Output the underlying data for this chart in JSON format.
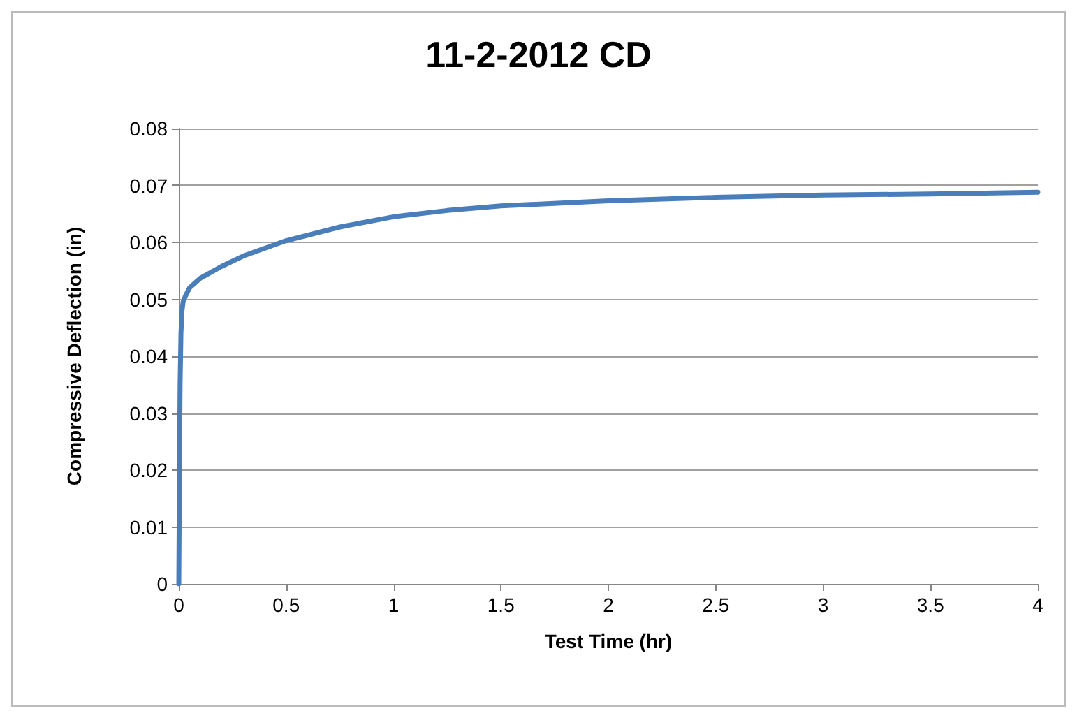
{
  "chart_data": {
    "type": "line",
    "title": "11-2-2012 CD",
    "xlabel": "Test Time (hr)",
    "ylabel": "Compressive Deflection (in)",
    "x": [
      0,
      0.003,
      0.006,
      0.01,
      0.015,
      0.02,
      0.03,
      0.05,
      0.1,
      0.2,
      0.3,
      0.5,
      0.75,
      1,
      1.25,
      1.5,
      2,
      2.5,
      3,
      3.5,
      4
    ],
    "series": [
      {
        "color": "#4a7ebb",
        "values": [
          0,
          0.02,
          0.035,
          0.044,
          0.048,
          0.0495,
          0.0505,
          0.052,
          0.0537,
          0.0558,
          0.0576,
          0.0603,
          0.0627,
          0.0645,
          0.0656,
          0.0664,
          0.0673,
          0.0679,
          0.0683,
          0.0685,
          0.0688
        ]
      }
    ],
    "xlim": [
      0,
      4
    ],
    "xticks": [
      0,
      0.5,
      1,
      1.5,
      2,
      2.5,
      3,
      3.5,
      4
    ],
    "ylim": [
      0,
      0.08
    ],
    "yticks": [
      0,
      0.01,
      0.02,
      0.03,
      0.04,
      0.05,
      0.06,
      0.07,
      0.08
    ],
    "grid": "y",
    "marker": "none",
    "line_style": "solid"
  }
}
